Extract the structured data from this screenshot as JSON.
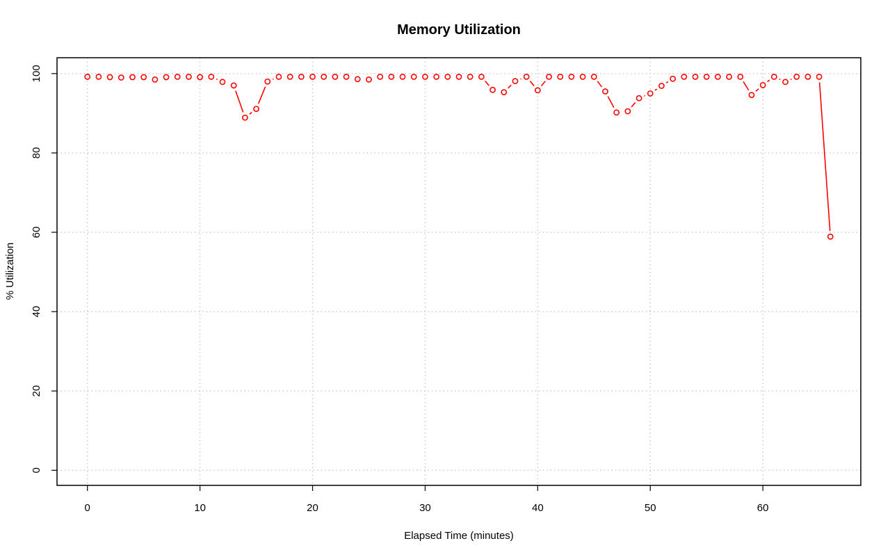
{
  "chart_data": {
    "type": "line",
    "title": "Memory Utilization",
    "xlabel": "Elapsed Time (minutes)",
    "ylabel": "% Utilization",
    "xlim": [
      -2.7,
      68.7
    ],
    "ylim": [
      -3.8,
      104
    ],
    "xticks": [
      0,
      10,
      20,
      30,
      40,
      50,
      60
    ],
    "yticks": [
      0,
      20,
      40,
      60,
      80,
      100
    ],
    "grid": true,
    "markers": "open-circle",
    "color": "#ff0000",
    "series": [
      {
        "x": [
          0,
          1,
          2,
          3,
          4,
          5,
          6,
          7,
          8,
          9,
          10,
          11,
          12,
          13,
          14,
          15,
          16,
          17,
          18,
          19,
          20,
          21,
          22,
          23,
          24,
          25,
          26,
          27,
          28,
          29,
          30,
          31,
          32,
          33,
          34,
          35,
          36,
          37,
          38,
          39,
          40,
          41,
          42,
          43,
          44,
          45,
          46,
          47,
          48,
          49,
          50,
          51,
          52,
          53,
          54,
          55,
          56,
          57,
          58,
          59,
          60,
          61,
          62,
          63,
          64,
          65,
          66
        ],
        "y": [
          99.2,
          99.2,
          99.1,
          99.0,
          99.1,
          99.1,
          98.5,
          99.1,
          99.2,
          99.2,
          99.1,
          99.2,
          97.9,
          97.0,
          88.9,
          91.1,
          98.0,
          99.2,
          99.2,
          99.2,
          99.2,
          99.2,
          99.2,
          99.2,
          98.6,
          98.5,
          99.2,
          99.2,
          99.2,
          99.2,
          99.2,
          99.2,
          99.2,
          99.2,
          99.2,
          99.2,
          95.9,
          95.3,
          98.1,
          99.2,
          95.8,
          99.2,
          99.2,
          99.2,
          99.2,
          99.2,
          95.5,
          90.2,
          90.5,
          93.8,
          95.0,
          96.9,
          98.7,
          99.2,
          99.2,
          99.2,
          99.2,
          99.2,
          99.2,
          94.6,
          97.1,
          99.2,
          97.9,
          99.2,
          99.2,
          99.2,
          58.9
        ]
      }
    ],
    "gaps_after_x": [
      13,
      14,
      15,
      24,
      35,
      36,
      37,
      38,
      39,
      40,
      45,
      46,
      47,
      48,
      49,
      50,
      51,
      58,
      59,
      60,
      61,
      62,
      65
    ]
  }
}
